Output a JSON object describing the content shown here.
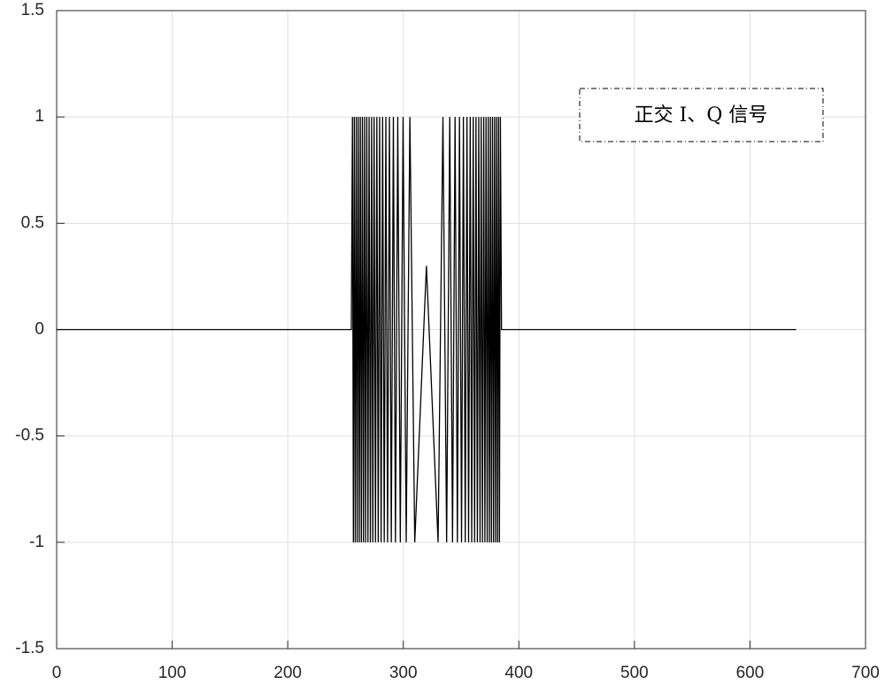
{
  "chart_data": {
    "type": "line",
    "annotation": "正交 I、Q 信号",
    "xlim": [
      0,
      700
    ],
    "xticks": [
      0,
      100,
      200,
      300,
      400,
      500,
      600,
      700
    ],
    "ylim": [
      -1.5,
      1.5
    ],
    "yticks": [
      -1.5,
      -1,
      -0.5,
      0,
      0.5,
      1,
      1.5
    ],
    "grid": true,
    "series": [
      {
        "color": "#000000",
        "x": [
          0,
          255,
          256.0,
          256.8,
          257.6,
          258.4,
          259.3,
          260.1,
          261.0,
          261.9,
          262.8,
          263.7,
          264.6,
          265.5,
          266.5,
          267.4,
          268.4,
          269.4,
          270.4,
          271.5,
          272.6,
          273.6,
          274.7,
          275.9,
          277.1,
          278.3,
          279.5,
          280.8,
          282.1,
          283.5,
          284.9,
          286.4,
          288.0,
          289.6,
          291.4,
          293.2,
          295.2,
          297.4,
          299.8,
          302.5,
          305.7,
          309.9,
          320,
          330.1,
          334.3,
          337.5,
          340.2,
          342.6,
          344.8,
          346.8,
          348.6,
          350.4,
          352.0,
          353.6,
          355.1,
          356.5,
          357.9,
          359.2,
          360.5,
          361.7,
          362.9,
          364.1,
          365.3,
          366.4,
          367.4,
          368.5,
          369.6,
          370.6,
          371.6,
          372.6,
          373.5,
          374.5,
          375.4,
          376.3,
          377.2,
          378.1,
          379.0,
          379.9,
          380.7,
          381.6,
          382.4,
          383.2,
          384.0,
          385,
          640
        ],
        "values": [
          0,
          0,
          1,
          -1,
          1,
          -1,
          1,
          -1,
          1,
          -1,
          1,
          -1,
          1,
          -1,
          1,
          -1,
          1,
          -1,
          1,
          -1,
          1,
          -1,
          1,
          -1,
          1,
          -1,
          1,
          -1,
          1,
          -1,
          1,
          -1,
          1,
          -1,
          1,
          -1,
          1,
          -1,
          1,
          -1,
          1,
          -1,
          0.3,
          -1,
          1,
          -1,
          1,
          -1,
          1,
          -1,
          1,
          -1,
          1,
          -1,
          1,
          -1,
          1,
          -1,
          1,
          -1,
          1,
          -1,
          1,
          -1,
          1,
          -1,
          1,
          -1,
          1,
          -1,
          1,
          -1,
          1,
          -1,
          1,
          -1,
          1,
          -1,
          1,
          -1,
          1,
          -1,
          1,
          0,
          0
        ]
      }
    ]
  }
}
